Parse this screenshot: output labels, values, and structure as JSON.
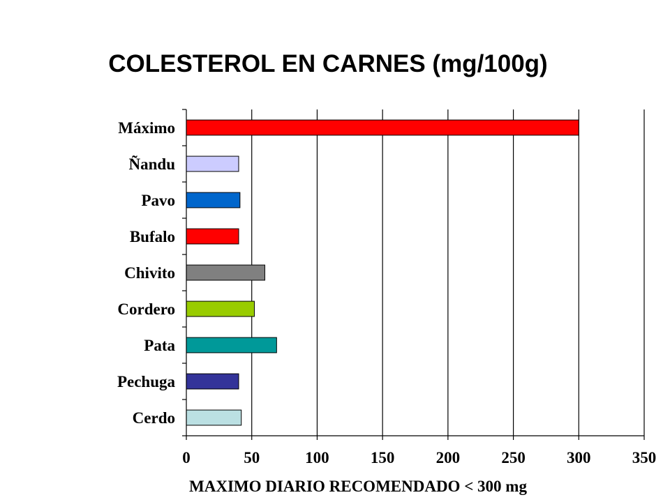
{
  "chart_data": {
    "type": "bar",
    "orientation": "horizontal",
    "title": "COLESTEROL EN CARNES (mg/100g)",
    "footnote": "MAXIMO DIARIO  RECOMENDADO < 300 mg",
    "xlabel": "",
    "ylabel": "",
    "xlim": [
      0,
      350
    ],
    "x_ticks": [
      0,
      50,
      100,
      150,
      200,
      250,
      300,
      350
    ],
    "grid": true,
    "categories": [
      "Máximo",
      "Ñandu",
      "Pavo",
      "Bufalo",
      "Chivito",
      "Cordero",
      "Pata",
      "Pechuga",
      "Cerdo"
    ],
    "values": [
      300,
      40,
      41,
      40,
      60,
      52,
      69,
      40,
      42
    ],
    "colors": [
      "#ff0000",
      "#ccccff",
      "#0066cc",
      "#ff0000",
      "#808080",
      "#99cc00",
      "#009999",
      "#333399",
      "#bbe0e3"
    ]
  }
}
